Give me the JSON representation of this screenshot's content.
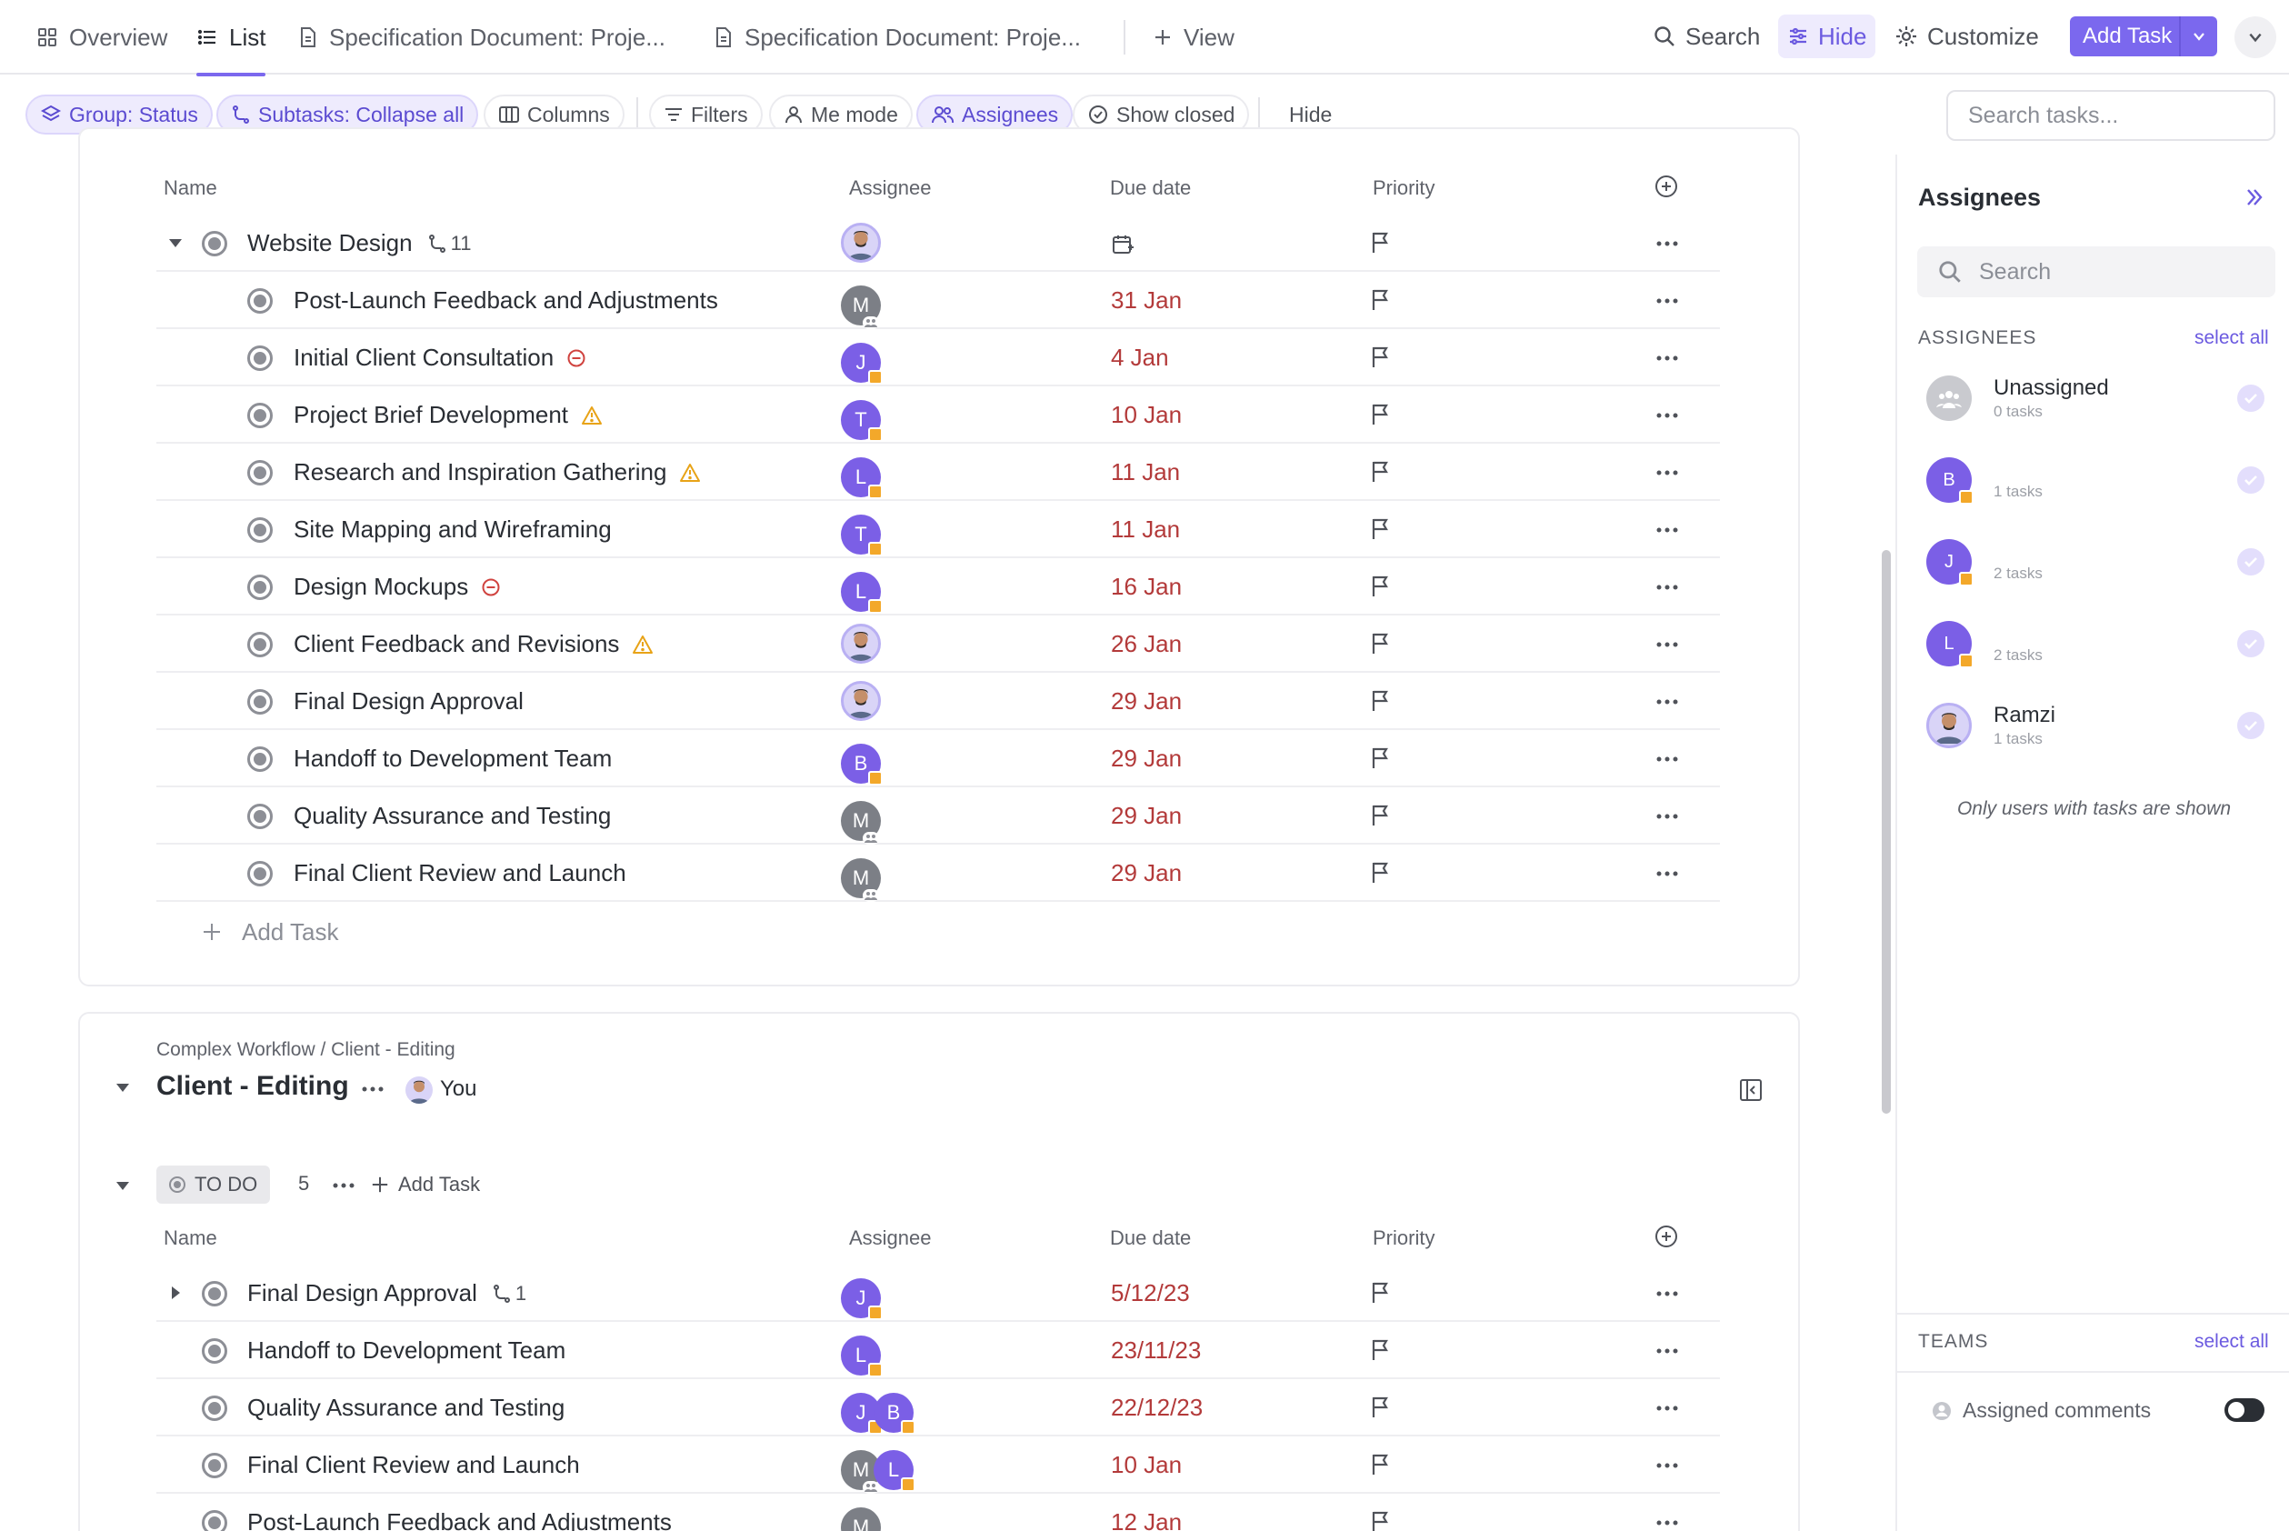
{
  "topbar": {
    "tabs": [
      {
        "label": "Overview",
        "icon": "grid-icon"
      },
      {
        "label": "List",
        "icon": "list-icon",
        "active": true
      },
      {
        "label": "Specification Document: Proje...",
        "icon": "doc-icon"
      },
      {
        "label": "Specification Document: Proje...",
        "icon": "doc-icon"
      },
      {
        "label": "View",
        "icon": "plus-icon"
      }
    ],
    "search_label": "Search",
    "hide_label": "Hide",
    "customize_label": "Customize",
    "add_task_label": "Add Task"
  },
  "toolbar": {
    "group": "Group: Status",
    "subtasks": "Subtasks: Collapse all",
    "columns": "Columns",
    "filters": "Filters",
    "me_mode": "Me mode",
    "assignees": "Assignees",
    "show_closed": "Show closed",
    "hide": "Hide",
    "search_placeholder": "Search tasks..."
  },
  "columns": {
    "name": "Name",
    "assignee": "Assignee",
    "due": "Due date",
    "priority": "Priority"
  },
  "section1": {
    "parent": {
      "name": "Website Design",
      "subtask_count": "11"
    },
    "tasks": [
      {
        "name": "Post-Launch Feedback and Adjustments",
        "due": "31 Jan",
        "assignee": "M",
        "kind": "gray",
        "icon": ""
      },
      {
        "name": "Initial Client Consultation",
        "due": "4 Jan",
        "assignee": "J",
        "kind": "purple",
        "icon": "blocked"
      },
      {
        "name": "Project Brief Development",
        "due": "10 Jan",
        "assignee": "T",
        "kind": "purple",
        "icon": "warning"
      },
      {
        "name": "Research and Inspiration Gathering",
        "due": "11 Jan",
        "assignee": "L",
        "kind": "purple",
        "icon": "warning"
      },
      {
        "name": "Site Mapping and Wireframing",
        "due": "11 Jan",
        "assignee": "T",
        "kind": "purple",
        "icon": ""
      },
      {
        "name": "Design Mockups",
        "due": "16 Jan",
        "assignee": "L",
        "kind": "purple",
        "icon": "blocked"
      },
      {
        "name": "Client Feedback and Revisions",
        "due": "26 Jan",
        "assignee": "",
        "kind": "photo",
        "icon": "warning"
      },
      {
        "name": "Final Design Approval",
        "due": "29 Jan",
        "assignee": "",
        "kind": "photo",
        "icon": ""
      },
      {
        "name": "Handoff to Development Team",
        "due": "29 Jan",
        "assignee": "B",
        "kind": "purple",
        "icon": ""
      },
      {
        "name": "Quality Assurance and Testing",
        "due": "29 Jan",
        "assignee": "M",
        "kind": "gray",
        "icon": ""
      },
      {
        "name": "Final Client Review and Launch",
        "due": "29 Jan",
        "assignee": "M",
        "kind": "gray",
        "icon": ""
      }
    ],
    "add_task": "Add Task"
  },
  "section2": {
    "breadcrumb": "Complex Workflow / Client - Editing",
    "title": "Client - Editing",
    "owner": "You",
    "status": "TO DO",
    "count": "5",
    "add_task": "Add Task",
    "tasks": [
      {
        "name": "Final Design Approval",
        "due": "5/12/23",
        "subtasks": "1"
      },
      {
        "name": "Handoff to Development Team",
        "due": "23/11/23"
      },
      {
        "name": "Quality Assurance and Testing",
        "due": "22/12/23"
      },
      {
        "name": "Final Client Review and Launch",
        "due": "10 Jan"
      },
      {
        "name": "Post-Launch Feedback and Adjustments",
        "due": "12 Jan"
      }
    ],
    "assignees": [
      [
        "J"
      ],
      [
        "L"
      ],
      [
        "J",
        "B"
      ],
      [
        "M",
        "L"
      ],
      [
        "M"
      ]
    ]
  },
  "panel": {
    "title": "Assignees",
    "search_placeholder": "Search",
    "section_label": "ASSIGNEES",
    "select_all": "select all",
    "people": [
      {
        "name": "Unassigned",
        "count": "0 tasks",
        "initial": ""
      },
      {
        "name": "",
        "count": "1 tasks",
        "initial": "B"
      },
      {
        "name": "",
        "count": "2 tasks",
        "initial": "J"
      },
      {
        "name": "",
        "count": "2 tasks",
        "initial": "L"
      },
      {
        "name": "Ramzi",
        "count": "1 tasks",
        "initial": ""
      }
    ],
    "note": "Only users with tasks are shown",
    "teams_label": "TEAMS",
    "teams_select_all": "select all",
    "assigned_comments": "Assigned comments"
  },
  "colors": {
    "accent": "#7b68ee",
    "due": "#b33a3a",
    "avatar_purple": "#7b5fe6",
    "badge": "#f3a82a"
  }
}
